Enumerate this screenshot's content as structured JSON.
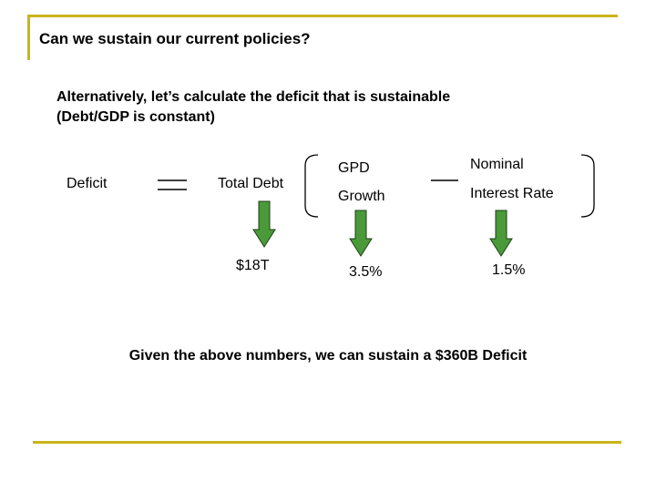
{
  "title": "Can we sustain our current policies?",
  "intro": {
    "line1": "Alternatively, let’s calculate the deficit that is sustainable",
    "line2": "(Debt/GDP is constant)"
  },
  "equation": {
    "deficit": "Deficit",
    "total_debt": "Total Debt",
    "gdp_label_top": "GPD",
    "gdp_label_bottom": "Growth",
    "rate_label_top": "Nominal",
    "rate_label_bottom": "Interest Rate"
  },
  "values": {
    "debt": "$18T",
    "growth": "3.5%",
    "rate": "1.5%"
  },
  "conclusion": "Given the above numbers, we can sustain a $360B Deficit",
  "colors": {
    "accent_bar": "#c9b51a",
    "arrow_fill": "#4a9a3a",
    "arrow_stroke": "#1f3d17"
  }
}
